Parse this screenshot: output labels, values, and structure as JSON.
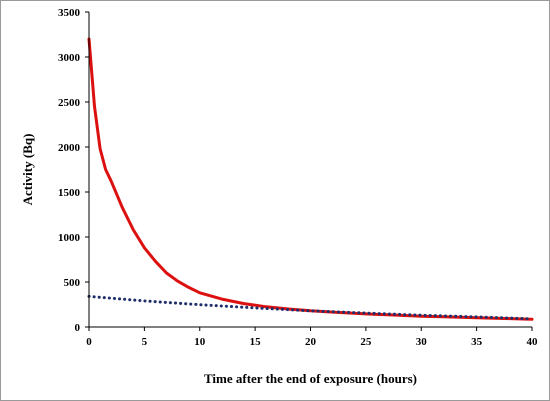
{
  "chart_data": {
    "type": "line",
    "xlabel": "Time after the end of exposure (hours)",
    "ylabel": "Activity (Bq)",
    "xlim": [
      0,
      40
    ],
    "ylim": [
      0,
      3500
    ],
    "x_ticks": [
      0,
      5,
      10,
      15,
      20,
      25,
      30,
      35,
      40
    ],
    "y_ticks": [
      0,
      500,
      1000,
      1500,
      2000,
      2500,
      3000,
      3500
    ],
    "grid": false,
    "legend": "none",
    "series": [
      {
        "style": "solid",
        "color": "#dd1010",
        "x": [
          0,
          0.5,
          1,
          1.5,
          2,
          3,
          4,
          5,
          6,
          7,
          8,
          9,
          10,
          12,
          14,
          16,
          18,
          20,
          22,
          25,
          28,
          30,
          32,
          35,
          38,
          40
        ],
        "values": [
          3200,
          2450,
          1980,
          1750,
          1620,
          1330,
          1080,
          880,
          730,
          600,
          510,
          440,
          380,
          310,
          260,
          225,
          200,
          180,
          165,
          145,
          130,
          120,
          113,
          103,
          93,
          87
        ]
      },
      {
        "style": "dotted",
        "color": "#1f2f6b",
        "x": [
          0,
          5,
          10,
          15,
          20,
          25,
          30,
          35,
          40
        ],
        "values": [
          340,
          290,
          248,
          212,
          180,
          154,
          131,
          112,
          90
        ]
      }
    ]
  }
}
